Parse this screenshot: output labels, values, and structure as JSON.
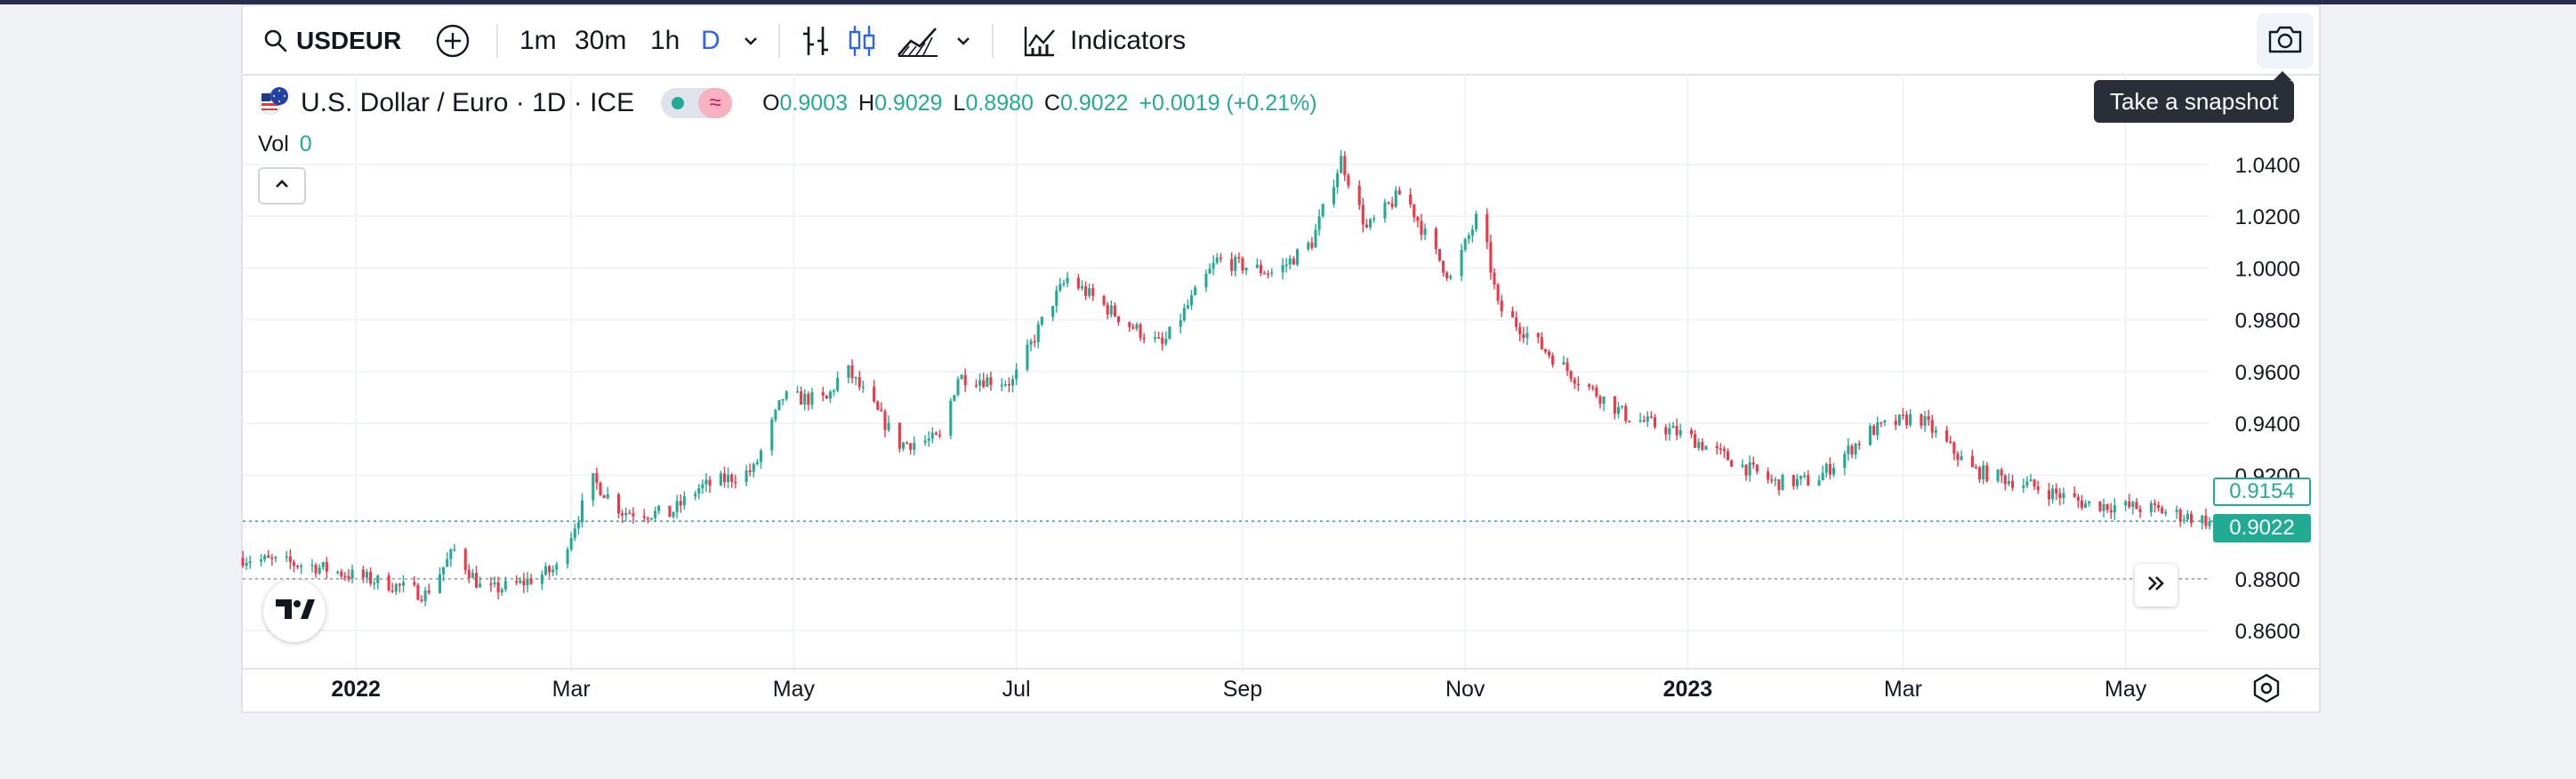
{
  "toolbar": {
    "symbol": "USDEUR",
    "intervals": [
      "1m",
      "30m",
      "1h",
      "D"
    ],
    "indicators_label": "Indicators",
    "snapshot_tooltip": "Take a snapshot"
  },
  "legend": {
    "title": "U.S. Dollar / Euro · 1D · ICE",
    "open_label": "O",
    "open": "0.9003",
    "high_label": "H",
    "high": "0.9029",
    "low_label": "L",
    "low": "0.8980",
    "close_label": "C",
    "close": "0.9022",
    "change": "+0.0019 (+0.21%)",
    "vol_label": "Vol",
    "vol_value": "0"
  },
  "colors": {
    "up": "#22ab94",
    "down": "#f23645",
    "accent": "#2962ff"
  },
  "icons": [
    "search-icon",
    "plus-circle-icon",
    "chevron-down-icon",
    "bar-style-icon",
    "candle-style-icon",
    "area-style-icon",
    "indicators-icon",
    "camera-icon",
    "flag-icon",
    "chevron-up-icon",
    "tradingview-logo-icon",
    "double-chevron-right-icon",
    "gear-icon"
  ],
  "chart_data": {
    "type": "candlestick",
    "title": "U.S. Dollar / Euro · 1D · ICE",
    "x_range": [
      "2021-12-01",
      "2023-05-24"
    ],
    "y_range": [
      0.848,
      1.052
    ],
    "y_ticks": [
      "0.8600",
      "0.8800",
      "0.9000",
      "0.9200",
      "0.9400",
      "0.9600",
      "0.9800",
      "1.0000",
      "1.0200",
      "1.0400"
    ],
    "x_ticks": [
      {
        "label": "2022",
        "date": "2022-01-01",
        "bold": true
      },
      {
        "label": "Mar",
        "date": "2022-03-01"
      },
      {
        "label": "May",
        "date": "2022-05-01"
      },
      {
        "label": "Jul",
        "date": "2022-07-01"
      },
      {
        "label": "Sep",
        "date": "2022-09-01"
      },
      {
        "label": "Nov",
        "date": "2022-11-01"
      },
      {
        "label": "2023",
        "date": "2023-01-01",
        "bold": true
      },
      {
        "label": "Mar",
        "date": "2023-03-01"
      },
      {
        "label": "May",
        "date": "2023-05-01"
      }
    ],
    "price_labels": {
      "high": "0.9154",
      "last": "0.9022"
    },
    "last_price": 0.9022,
    "reference_price": 0.88,
    "grid": true,
    "path": [
      [
        "2021-12-01",
        0.888
      ],
      [
        "2021-12-20",
        0.885
      ],
      [
        "2022-01-10",
        0.878
      ],
      [
        "2022-01-20",
        0.874
      ],
      [
        "2022-01-28",
        0.891
      ],
      [
        "2022-02-05",
        0.875
      ],
      [
        "2022-02-15",
        0.878
      ],
      [
        "2022-02-25",
        0.884
      ],
      [
        "2022-03-07",
        0.918
      ],
      [
        "2022-03-15",
        0.906
      ],
      [
        "2022-03-28",
        0.905
      ],
      [
        "2022-04-05",
        0.915
      ],
      [
        "2022-04-20",
        0.922
      ],
      [
        "2022-04-28",
        0.95
      ],
      [
        "2022-05-10",
        0.949
      ],
      [
        "2022-05-15",
        0.962
      ],
      [
        "2022-05-30",
        0.932
      ],
      [
        "2022-06-10",
        0.934
      ],
      [
        "2022-06-15",
        0.958
      ],
      [
        "2022-06-30",
        0.956
      ],
      [
        "2022-07-10",
        0.985
      ],
      [
        "2022-07-15",
        0.996
      ],
      [
        "2022-08-01",
        0.978
      ],
      [
        "2022-08-10",
        0.97
      ],
      [
        "2022-08-25",
        1.003
      ],
      [
        "2022-09-10",
        0.998
      ],
      [
        "2022-09-20",
        1.01
      ],
      [
        "2022-09-28",
        1.042
      ],
      [
        "2022-10-05",
        1.015
      ],
      [
        "2022-10-15",
        1.03
      ],
      [
        "2022-10-22",
        1.01
      ],
      [
        "2022-10-28",
        0.996
      ],
      [
        "2022-11-05",
        1.022
      ],
      [
        "2022-11-10",
        0.985
      ],
      [
        "2022-11-20",
        0.972
      ],
      [
        "2022-12-01",
        0.958
      ],
      [
        "2022-12-15",
        0.943
      ],
      [
        "2023-01-01",
        0.935
      ],
      [
        "2023-01-10",
        0.928
      ],
      [
        "2023-01-25",
        0.917
      ],
      [
        "2023-02-05",
        0.918
      ],
      [
        "2023-02-20",
        0.937
      ],
      [
        "2023-03-05",
        0.943
      ],
      [
        "2023-03-20",
        0.922
      ],
      [
        "2023-04-05",
        0.916
      ],
      [
        "2023-04-20",
        0.909
      ],
      [
        "2023-05-08",
        0.907
      ],
      [
        "2023-05-24",
        0.9022
      ]
    ]
  }
}
